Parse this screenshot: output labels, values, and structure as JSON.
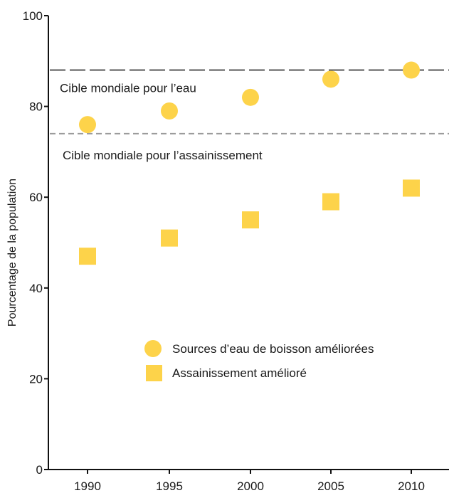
{
  "chart_data": {
    "type": "scatter",
    "title": "",
    "ylabel": "Pourcentage de la population",
    "xlabel": "",
    "x": [
      1990,
      1995,
      2000,
      2005,
      2010
    ],
    "x_tick_labels": [
      "1990",
      "1995",
      "2000",
      "2005",
      "2010"
    ],
    "y_tick_labels": [
      "0",
      "20",
      "40",
      "60",
      "80",
      "100"
    ],
    "ylim": [
      0,
      100
    ],
    "grid": false,
    "legend_position": "center-right",
    "series": [
      {
        "name": "Sources d’eau de boisson améliorées",
        "marker": "circle",
        "color": "#fdd34a",
        "values": [
          76,
          79,
          82,
          86,
          88
        ]
      },
      {
        "name": "Assainissement amélioré",
        "marker": "square",
        "color": "#fdd34a",
        "values": [
          47,
          51,
          55,
          59,
          62
        ]
      }
    ],
    "reference_lines": [
      {
        "label": "Cible mondiale pour l’eau",
        "value": 88,
        "color": "#555555",
        "style": "long-dash"
      },
      {
        "label": "Cible mondiale pour l’assainissement",
        "value": 74,
        "color": "#9a9a9a",
        "style": "short-dash"
      }
    ]
  }
}
